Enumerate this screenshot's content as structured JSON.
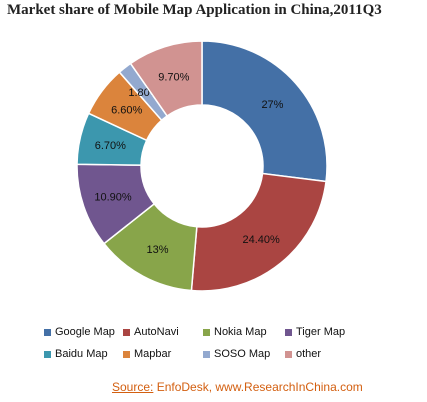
{
  "chart_data": {
    "type": "pie",
    "title": "Market share of Mobile Map Application in China,2011Q3",
    "donut": true,
    "legend_position": "bottom",
    "slices": [
      {
        "name": "Google Map",
        "value": 27,
        "label": "27%",
        "color": "#4470a6"
      },
      {
        "name": "AutoNavi",
        "value": 24.4,
        "label": "24.40%",
        "color": "#aa4542"
      },
      {
        "name": "Nokia Map",
        "value": 13,
        "label": "13%",
        "color": "#88a54a"
      },
      {
        "name": "Tiger Map",
        "value": 10.9,
        "label": "10.90%",
        "color": "#70568f"
      },
      {
        "name": "Baidu Map",
        "value": 6.7,
        "label": "6.70%",
        "color": "#3c97ae"
      },
      {
        "name": "Mapbar",
        "value": 6.6,
        "label": "6.60%",
        "color": "#db843c"
      },
      {
        "name": "SOSO Map",
        "value": 1.8,
        "label": "1.80%",
        "color": "#93a9cf"
      },
      {
        "name": "other",
        "value": 9.7,
        "label": "9.70%",
        "color": "#d19391"
      }
    ]
  },
  "source": {
    "key": "Source:",
    "text": " EnfoDesk, www.ResearchInChina.com"
  }
}
